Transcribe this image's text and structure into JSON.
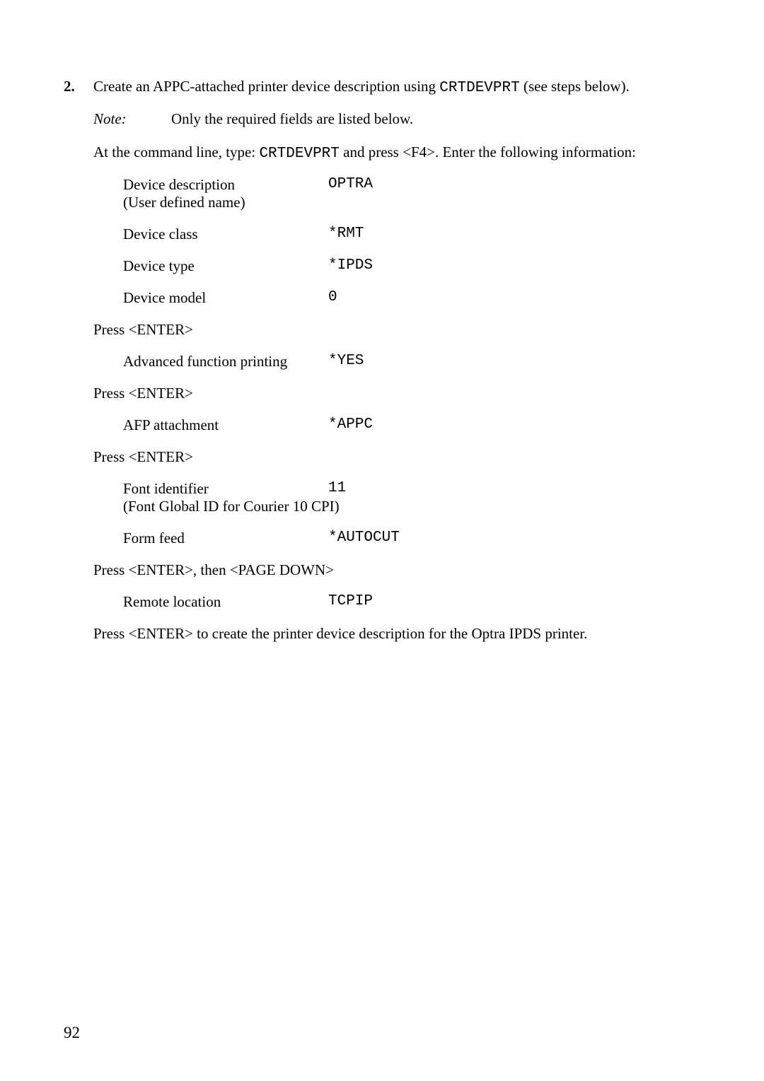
{
  "list": {
    "marker": "2.",
    "intro": {
      "pre": "Create an APPC-attached printer device description using ",
      "code": "CRTDEVPRT",
      "post": " (see steps below)."
    },
    "note": {
      "label": "Note:",
      "text": "Only the required fields are listed below."
    },
    "command": {
      "pre": "At the command line, type: ",
      "code": "CRTDEVPRT",
      "post": " and press <F4>. Enter the following information:"
    },
    "fields1": {
      "dev_desc_label": "Device description",
      "dev_desc_sub": "(User defined name)",
      "dev_desc_val": "OPTRA",
      "dev_class_label": "Device class",
      "dev_class_val": "*RMT",
      "dev_type_label": "Device type",
      "dev_type_val": "*IPDS",
      "dev_model_label": "Device model",
      "dev_model_val": "0"
    },
    "press1": "Press <ENTER>",
    "fields2": {
      "afp_label": "Advanced function printing",
      "afp_val": "*YES"
    },
    "press2": "Press <ENTER>",
    "fields3": {
      "afpattach_label": "AFP attachment",
      "afpattach_val": "*APPC"
    },
    "press3": "Press <ENTER>",
    "fields4": {
      "font_label": "Font identifier",
      "font_val": "11",
      "font_sub": "(Font Global ID for Courier 10 CPI)",
      "formfeed_label": "Form feed",
      "formfeed_val": "*AUTOCUT"
    },
    "press4": "Press <ENTER>, then <PAGE DOWN>",
    "fields5": {
      "remote_label": "Remote location",
      "remote_val": "TCPIP"
    },
    "final": "Press <ENTER> to create the printer device description for the Optra IPDS printer."
  },
  "page_number": "92"
}
